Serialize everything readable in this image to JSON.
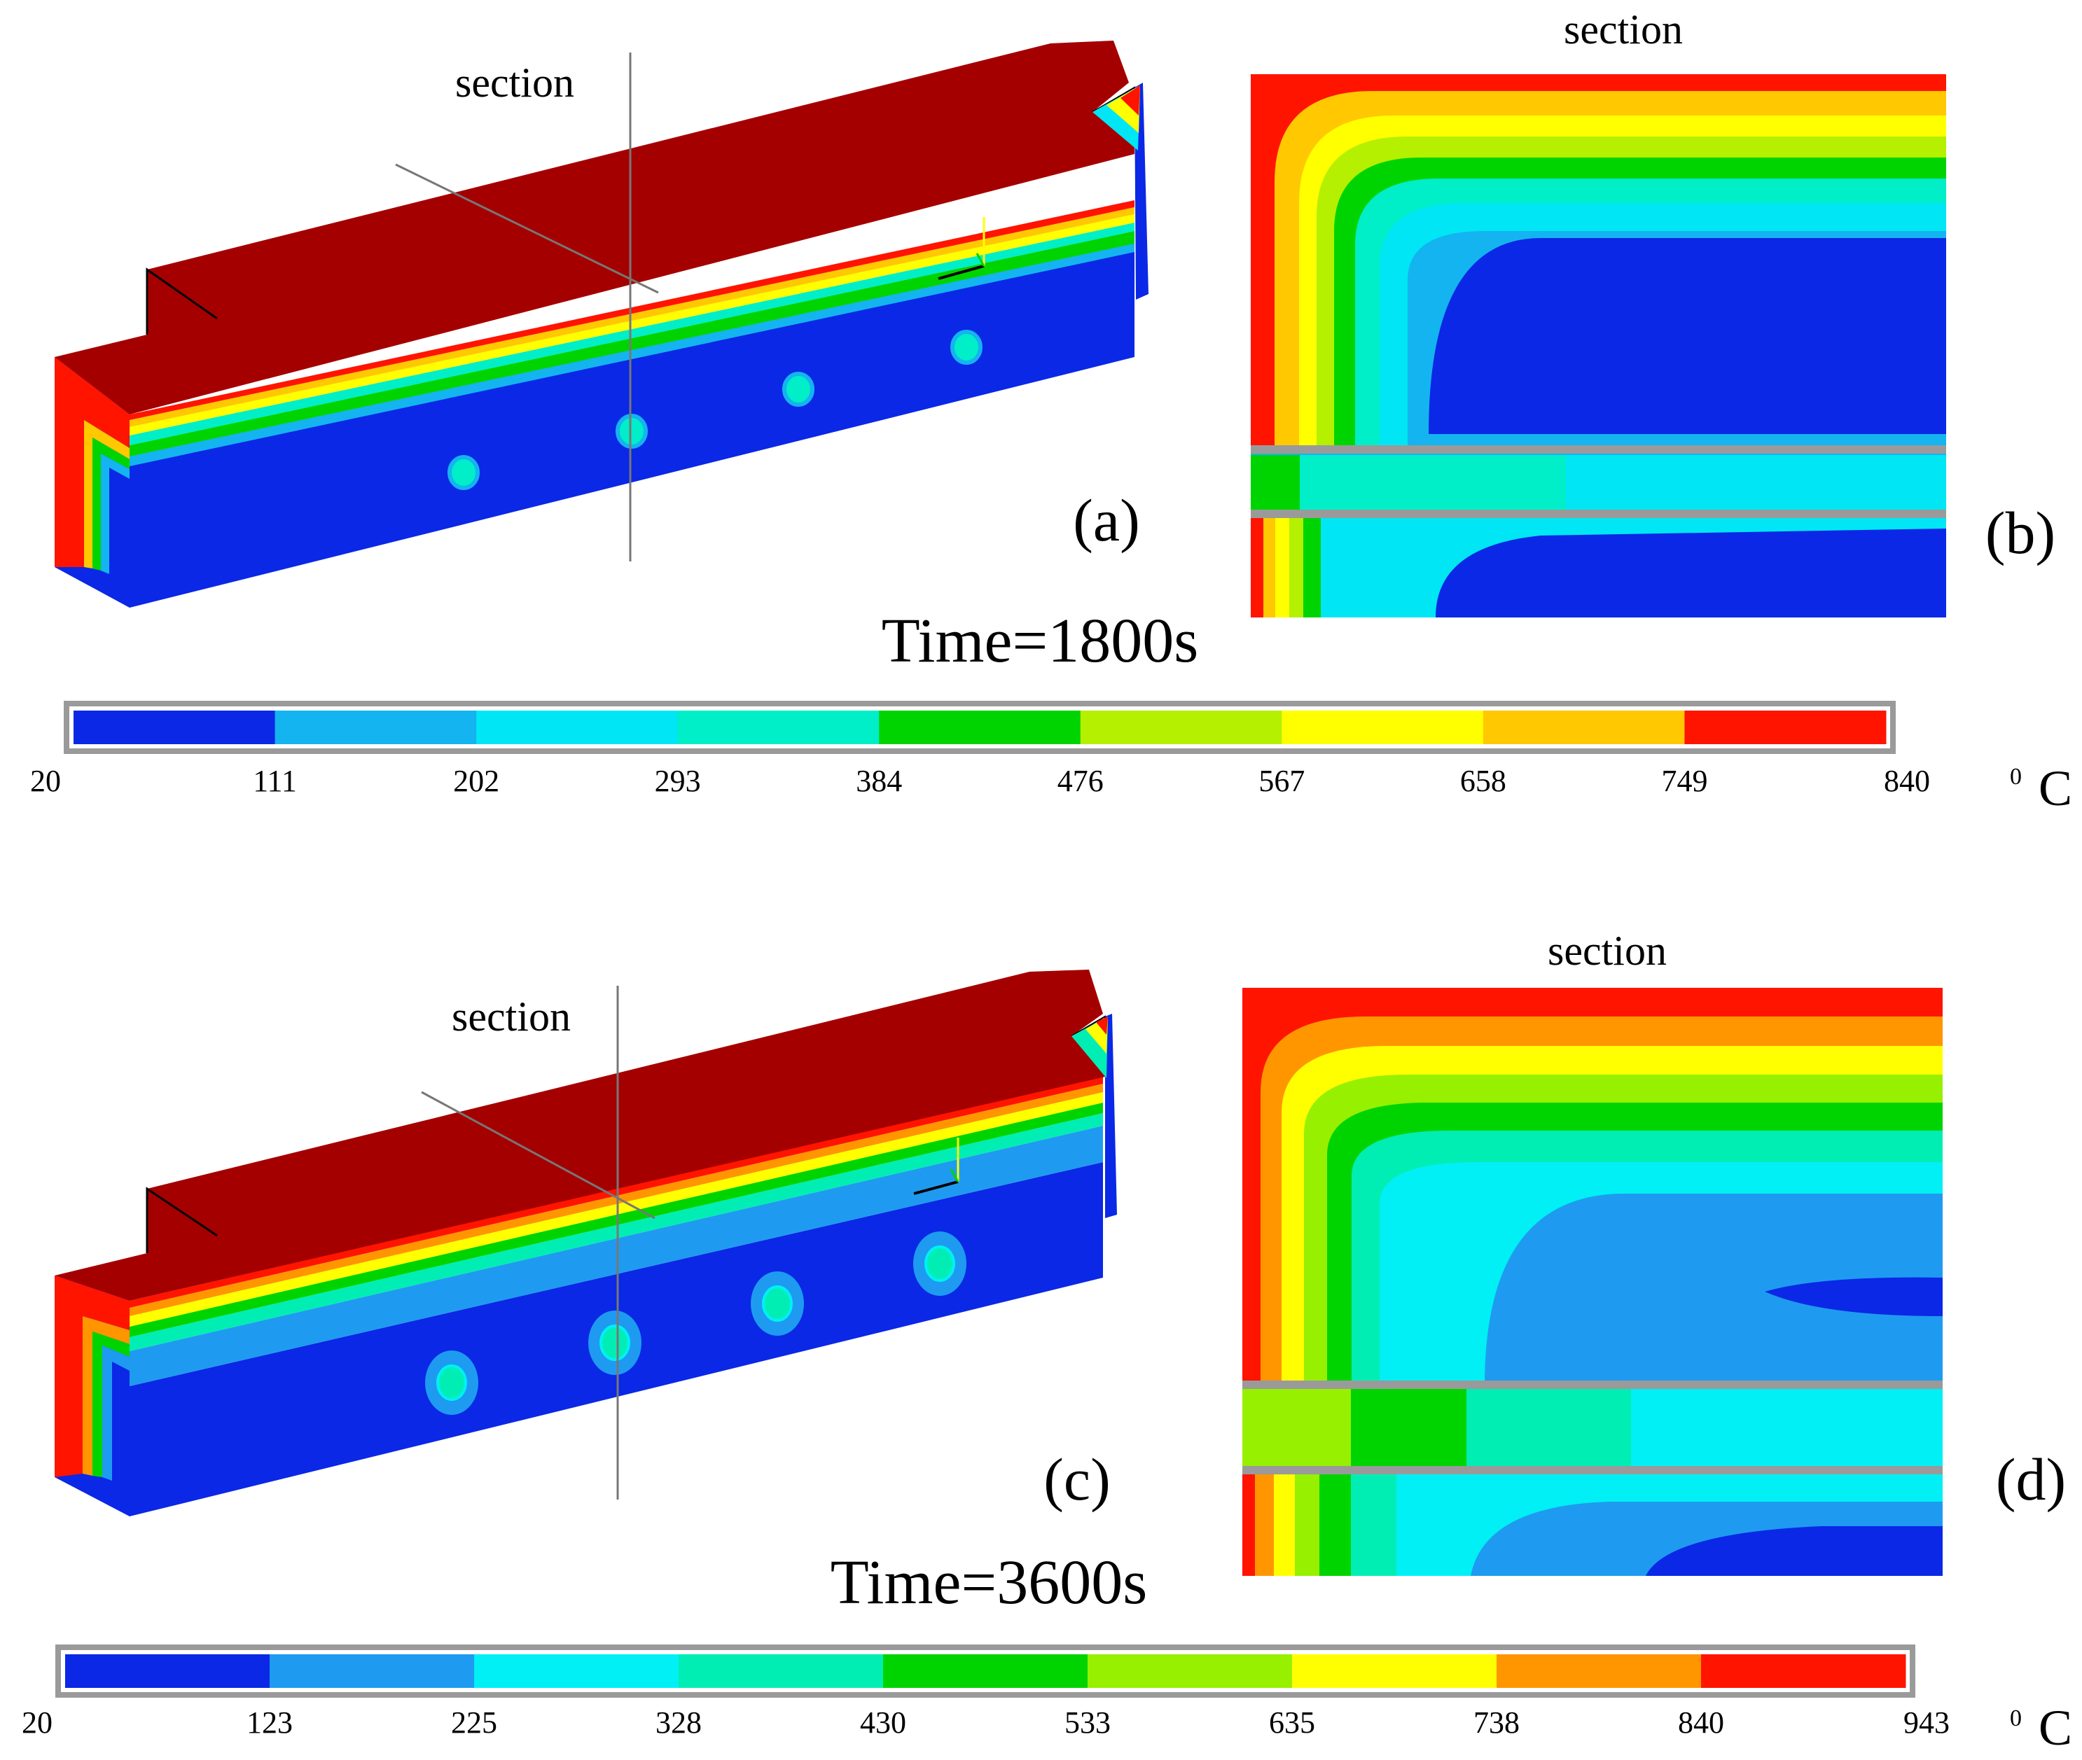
{
  "panels": {
    "a": {
      "section_label": "section",
      "panel_label": "(a)"
    },
    "b": {
      "section_label": "section",
      "panel_label": "(b)"
    },
    "c": {
      "section_label": "section",
      "panel_label": "(c)"
    },
    "d": {
      "section_label": "section",
      "panel_label": "(d)"
    }
  },
  "time_labels": {
    "top": "Time=1800s",
    "bottom": "Time=3600s"
  },
  "unit": {
    "degree": "0",
    "symbol": "C"
  },
  "legend_top": {
    "ticks": [
      "20",
      "111",
      "202",
      "293",
      "384",
      "476",
      "567",
      "658",
      "749",
      "840"
    ],
    "colors": [
      "#0a28e6",
      "#14b4f0",
      "#00e6f5",
      "#00eec8",
      "#00d400",
      "#b4f000",
      "#ffff00",
      "#ffc800",
      "#ff1400"
    ]
  },
  "legend_bottom": {
    "ticks": [
      "20",
      "123",
      "225",
      "328",
      "430",
      "533",
      "635",
      "738",
      "840",
      "943"
    ],
    "colors": [
      "#0a28e6",
      "#1e9bf0",
      "#00f0f5",
      "#00eeb4",
      "#00d400",
      "#96f000",
      "#ffff00",
      "#ff9600",
      "#ff1400"
    ]
  },
  "colors": {
    "hot_top_face": "#a50000",
    "cold": "#0a28e6",
    "frame_gray": "#9a9a9a"
  }
}
